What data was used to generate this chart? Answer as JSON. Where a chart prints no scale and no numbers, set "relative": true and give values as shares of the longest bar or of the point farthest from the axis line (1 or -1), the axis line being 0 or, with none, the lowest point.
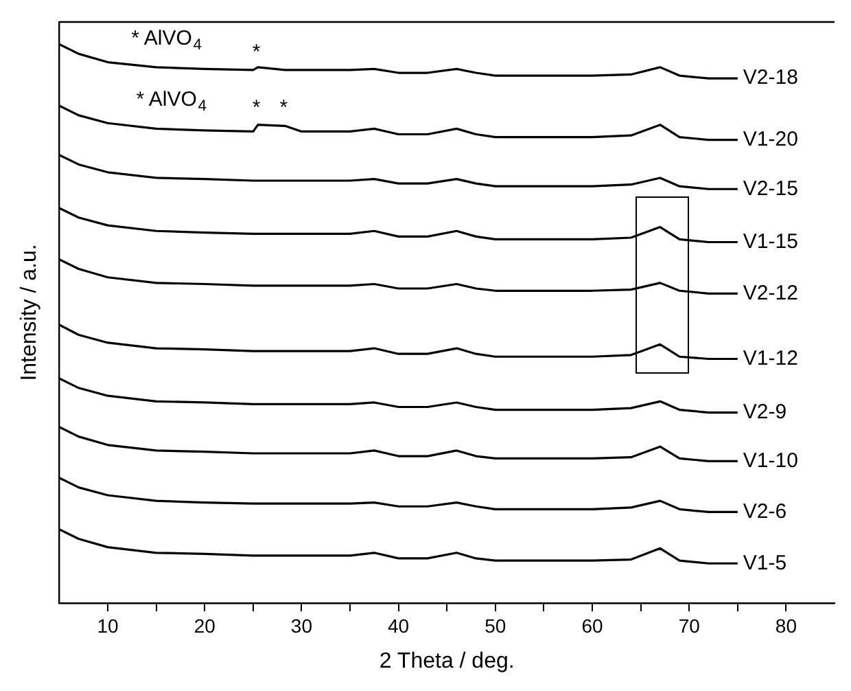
{
  "chart_data": {
    "type": "line",
    "xlabel": "2 Theta / deg.",
    "ylabel": "Intensity / a.u.",
    "relative": true,
    "legend": false,
    "grid": false,
    "marker": "none",
    "line_style": "solid",
    "xlim": [
      5,
      85
    ],
    "xticks": [
      10,
      {
        "value": 15,
        "label": null
      },
      20,
      {
        "value": 25,
        "label": null
      },
      30,
      {
        "value": 35,
        "label": null
      },
      40,
      {
        "value": 45,
        "label": null
      },
      50,
      {
        "value": 55,
        "label": null
      },
      60,
      {
        "value": 65,
        "label": null
      },
      70,
      {
        "value": 75,
        "label": null
      },
      80
    ],
    "x": [
      5,
      7,
      10,
      15,
      20,
      25,
      25.5,
      28.3,
      30,
      35,
      37.5,
      40,
      43,
      46,
      48,
      50,
      55,
      60,
      64,
      67,
      69,
      72,
      75
    ],
    "series": [
      {
        "name": "V2-18",
        "color": "#000000",
        "values": [
          1.0,
          0.983,
          0.968,
          0.959,
          0.956,
          0.954,
          0.959,
          0.954,
          0.954,
          0.954,
          0.956,
          0.949,
          0.949,
          0.956,
          0.949,
          0.944,
          0.944,
          0.944,
          0.946,
          0.959,
          0.944,
          0.939,
          0.939
        ]
      },
      {
        "name": "V1-20",
        "color": "#000000",
        "values": [
          0.89,
          0.873,
          0.859,
          0.849,
          0.846,
          0.844,
          0.856,
          0.854,
          0.844,
          0.844,
          0.849,
          0.839,
          0.839,
          0.849,
          0.839,
          0.834,
          0.834,
          0.834,
          0.837,
          0.856,
          0.834,
          0.829,
          0.829
        ]
      },
      {
        "name": "V2-15",
        "color": "#000000",
        "values": [
          0.802,
          0.785,
          0.771,
          0.761,
          0.759,
          0.756,
          0.756,
          0.756,
          0.756,
          0.756,
          0.759,
          0.751,
          0.751,
          0.759,
          0.751,
          0.746,
          0.746,
          0.746,
          0.749,
          0.761,
          0.746,
          0.741,
          0.741
        ]
      },
      {
        "name": "V1-15",
        "color": "#000000",
        "values": [
          0.707,
          0.69,
          0.676,
          0.666,
          0.663,
          0.661,
          0.661,
          0.661,
          0.661,
          0.661,
          0.666,
          0.656,
          0.656,
          0.666,
          0.656,
          0.651,
          0.651,
          0.651,
          0.654,
          0.673,
          0.651,
          0.646,
          0.646
        ]
      },
      {
        "name": "V2-12",
        "color": "#000000",
        "values": [
          0.615,
          0.598,
          0.583,
          0.573,
          0.571,
          0.568,
          0.568,
          0.568,
          0.568,
          0.568,
          0.571,
          0.563,
          0.563,
          0.571,
          0.563,
          0.559,
          0.559,
          0.559,
          0.561,
          0.573,
          0.559,
          0.554,
          0.554
        ]
      },
      {
        "name": "V1-12",
        "color": "#000000",
        "values": [
          0.498,
          0.48,
          0.466,
          0.456,
          0.454,
          0.451,
          0.451,
          0.451,
          0.451,
          0.451,
          0.456,
          0.446,
          0.446,
          0.456,
          0.446,
          0.441,
          0.441,
          0.441,
          0.444,
          0.463,
          0.441,
          0.437,
          0.437
        ]
      },
      {
        "name": "V2-9",
        "color": "#000000",
        "values": [
          0.402,
          0.385,
          0.371,
          0.361,
          0.359,
          0.356,
          0.356,
          0.356,
          0.356,
          0.356,
          0.359,
          0.351,
          0.351,
          0.359,
          0.351,
          0.346,
          0.346,
          0.346,
          0.349,
          0.361,
          0.346,
          0.341,
          0.341
        ]
      },
      {
        "name": "V1-10",
        "color": "#000000",
        "values": [
          0.315,
          0.298,
          0.283,
          0.273,
          0.271,
          0.268,
          0.268,
          0.268,
          0.268,
          0.268,
          0.273,
          0.263,
          0.263,
          0.273,
          0.263,
          0.259,
          0.259,
          0.259,
          0.261,
          0.28,
          0.259,
          0.254,
          0.254
        ]
      },
      {
        "name": "V2-6",
        "color": "#000000",
        "values": [
          0.224,
          0.207,
          0.193,
          0.183,
          0.18,
          0.178,
          0.178,
          0.178,
          0.178,
          0.178,
          0.18,
          0.173,
          0.173,
          0.18,
          0.173,
          0.168,
          0.168,
          0.168,
          0.171,
          0.183,
          0.168,
          0.163,
          0.163
        ]
      },
      {
        "name": "V1-5",
        "color": "#000000",
        "values": [
          0.132,
          0.115,
          0.1,
          0.09,
          0.088,
          0.085,
          0.085,
          0.085,
          0.085,
          0.085,
          0.09,
          0.08,
          0.08,
          0.09,
          0.08,
          0.076,
          0.076,
          0.076,
          0.078,
          0.098,
          0.076,
          0.071,
          0.071
        ]
      }
    ],
    "annotations": [
      "* AlVO$_{4}$",
      "*",
      "* AlVO$_{4}$",
      "*",
      "*"
    ]
  }
}
